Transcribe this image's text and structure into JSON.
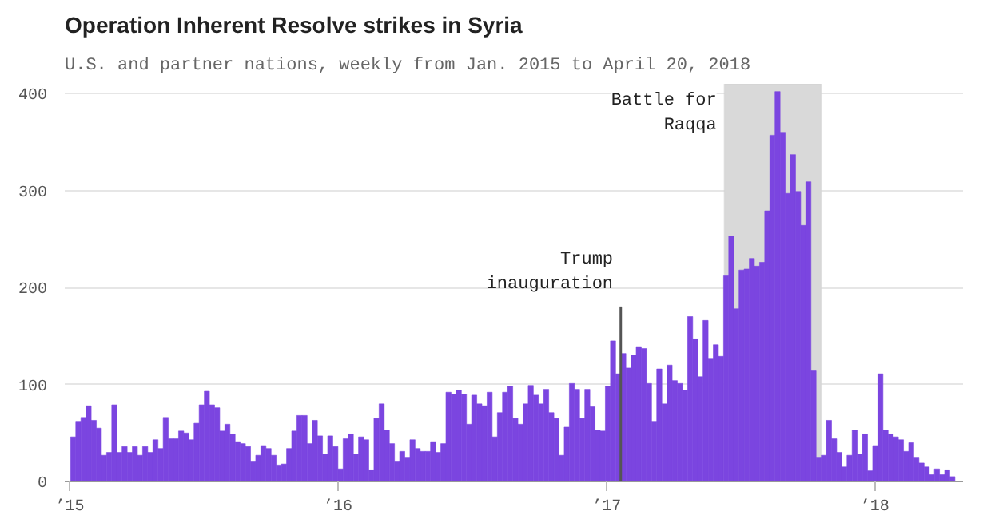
{
  "chart_data": {
    "type": "bar",
    "title": "Operation Inherent Resolve strikes in Syria",
    "subtitle": "U.S. and partner nations, weekly from Jan. 2015 to April 20, 2018",
    "x": [
      "2015-01-09",
      "2015-01-16",
      "2015-01-23",
      "2015-01-30",
      "2015-02-06",
      "2015-02-13",
      "2015-02-20",
      "2015-02-27",
      "2015-03-06",
      "2015-03-13",
      "2015-03-20",
      "2015-03-27",
      "2015-04-03",
      "2015-04-10",
      "2015-04-17",
      "2015-04-24",
      "2015-05-01",
      "2015-05-08",
      "2015-05-15",
      "2015-05-22",
      "2015-05-29",
      "2015-06-05",
      "2015-06-12",
      "2015-06-19",
      "2015-06-26",
      "2015-07-03",
      "2015-07-10",
      "2015-07-17",
      "2015-07-24",
      "2015-07-31",
      "2015-08-07",
      "2015-08-14",
      "2015-08-21",
      "2015-08-28",
      "2015-09-04",
      "2015-09-11",
      "2015-09-18",
      "2015-09-25",
      "2015-10-02",
      "2015-10-09",
      "2015-10-16",
      "2015-10-23",
      "2015-10-30",
      "2015-11-06",
      "2015-11-13",
      "2015-11-20",
      "2015-11-27",
      "2015-12-04",
      "2015-12-11",
      "2015-12-18",
      "2015-12-25",
      "2016-01-01",
      "2016-01-08",
      "2016-01-15",
      "2016-01-22",
      "2016-01-29",
      "2016-02-05",
      "2016-02-12",
      "2016-02-19",
      "2016-02-26",
      "2016-03-04",
      "2016-03-11",
      "2016-03-18",
      "2016-03-25",
      "2016-04-01",
      "2016-04-08",
      "2016-04-15",
      "2016-04-22",
      "2016-04-29",
      "2016-05-06",
      "2016-05-13",
      "2016-05-20",
      "2016-05-27",
      "2016-06-03",
      "2016-06-10",
      "2016-06-17",
      "2016-06-24",
      "2016-07-01",
      "2016-07-08",
      "2016-07-15",
      "2016-07-22",
      "2016-07-29",
      "2016-08-05",
      "2016-08-12",
      "2016-08-19",
      "2016-08-26",
      "2016-09-02",
      "2016-09-09",
      "2016-09-16",
      "2016-09-23",
      "2016-09-30",
      "2016-10-07",
      "2016-10-14",
      "2016-10-21",
      "2016-10-28",
      "2016-11-04",
      "2016-11-11",
      "2016-11-18",
      "2016-11-25",
      "2016-12-02",
      "2016-12-09",
      "2016-12-16",
      "2016-12-23",
      "2016-12-30",
      "2017-01-06",
      "2017-01-13",
      "2017-01-20",
      "2017-01-27",
      "2017-02-03",
      "2017-02-10",
      "2017-02-17",
      "2017-02-24",
      "2017-03-03",
      "2017-03-10",
      "2017-03-17",
      "2017-03-24",
      "2017-03-31",
      "2017-04-07",
      "2017-04-14",
      "2017-04-21",
      "2017-04-28",
      "2017-05-05",
      "2017-05-12",
      "2017-05-19",
      "2017-05-26",
      "2017-06-02",
      "2017-06-09",
      "2017-06-16",
      "2017-06-23",
      "2017-06-30",
      "2017-07-07",
      "2017-07-14",
      "2017-07-21",
      "2017-07-28",
      "2017-08-04",
      "2017-08-11",
      "2017-08-18",
      "2017-08-25",
      "2017-09-01",
      "2017-09-08",
      "2017-09-15",
      "2017-09-22",
      "2017-09-29",
      "2017-10-06",
      "2017-10-13",
      "2017-10-20",
      "2017-10-27",
      "2017-11-03",
      "2017-11-10",
      "2017-11-17",
      "2017-11-24",
      "2017-12-01",
      "2017-12-08",
      "2017-12-15",
      "2017-12-22",
      "2017-12-29",
      "2018-01-05",
      "2018-01-12",
      "2018-01-19",
      "2018-01-26",
      "2018-02-02",
      "2018-02-09",
      "2018-02-16",
      "2018-02-23",
      "2018-03-02",
      "2018-03-09",
      "2018-03-16",
      "2018-03-23",
      "2018-03-30",
      "2018-04-06",
      "2018-04-13",
      "2018-04-20"
    ],
    "values": [
      46,
      62,
      66,
      78,
      63,
      55,
      27,
      30,
      79,
      30,
      36,
      30,
      36,
      27,
      36,
      30,
      43,
      34,
      66,
      44,
      44,
      52,
      50,
      43,
      60,
      79,
      93,
      79,
      76,
      52,
      59,
      49,
      41,
      39,
      36,
      21,
      27,
      37,
      34,
      27,
      17,
      18,
      34,
      52,
      68,
      68,
      39,
      63,
      47,
      28,
      47,
      36,
      13,
      44,
      49,
      28,
      46,
      43,
      12,
      65,
      80,
      53,
      39,
      21,
      31,
      25,
      43,
      34,
      31,
      31,
      41,
      30,
      39,
      92,
      90,
      94,
      90,
      59,
      89,
      80,
      78,
      92,
      46,
      71,
      92,
      98,
      65,
      59,
      80,
      99,
      89,
      80,
      95,
      71,
      65,
      27,
      56,
      101,
      95,
      65,
      95,
      77,
      53,
      52,
      98,
      145,
      111,
      132,
      117,
      130,
      139,
      137,
      101,
      62,
      116,
      80,
      120,
      104,
      101,
      94,
      170,
      147,
      108,
      166,
      127,
      141,
      129,
      212,
      253,
      178,
      218,
      219,
      230,
      222,
      226,
      279,
      357,
      402,
      360,
      297,
      337,
      299,
      264,
      309,
      114,
      25,
      27,
      63,
      44,
      30,
      15,
      27,
      53,
      28,
      49,
      11,
      37,
      111,
      53,
      49,
      46,
      43,
      31,
      40,
      25,
      19,
      15,
      7,
      13,
      7,
      12,
      5
    ],
    "color": "#7b45e0",
    "xlim": [
      "2014-12-25",
      "2018-05-01"
    ],
    "xticks": [
      {
        "value": "2015-01-01",
        "label": "’15"
      },
      {
        "value": "2016-01-01",
        "label": "’16"
      },
      {
        "value": "2017-01-01",
        "label": "’17"
      },
      {
        "value": "2018-01-01",
        "label": "’18"
      }
    ],
    "ylim": [
      0,
      410
    ],
    "yticks": [
      0,
      100,
      200,
      300,
      400
    ],
    "grid": "y",
    "ref_lines": [
      {
        "axis": "x",
        "value": "2017-01-20",
        "label": "Trump\ninauguration",
        "color": "#555555"
      }
    ],
    "bands": [
      {
        "axis": "x",
        "from": "2017-06-10",
        "to": "2017-10-20",
        "label": "Battle for\nRaqqa",
        "color": "#d9d9d9"
      }
    ]
  }
}
